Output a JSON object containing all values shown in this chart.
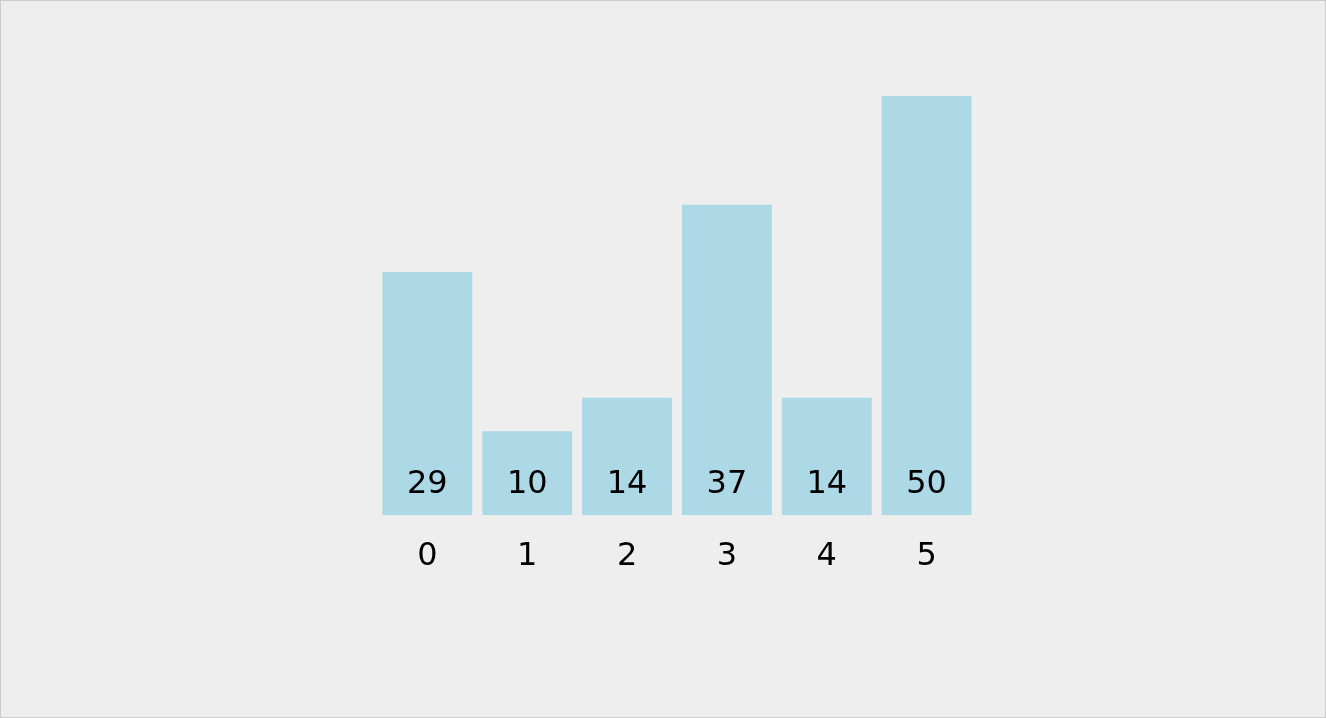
{
  "chart_data": {
    "type": "bar",
    "categories": [
      "0",
      "1",
      "2",
      "3",
      "4",
      "5"
    ],
    "values": [
      29,
      10,
      14,
      37,
      14,
      50
    ],
    "color": "#add8e6",
    "data_labels": true,
    "grid": false,
    "legend": false
  }
}
